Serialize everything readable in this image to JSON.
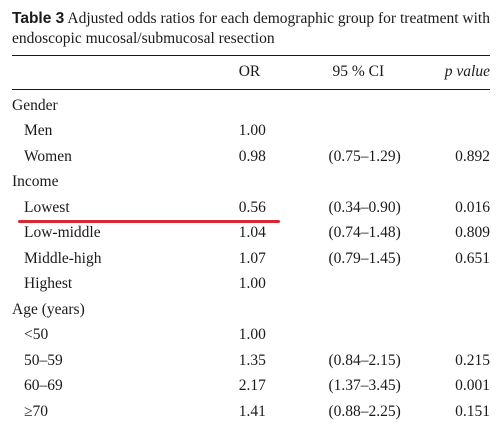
{
  "caption": {
    "label": "Table 3",
    "text": "Adjusted odds ratios for each demographic group for treatment with endoscopic mucosal/submucosal resection"
  },
  "columns": {
    "group": "",
    "or": "OR",
    "ci": "95 % CI",
    "p": "p value"
  },
  "rows": [
    {
      "type": "section",
      "label": "Gender"
    },
    {
      "type": "row",
      "label": "Men",
      "or": "1.00",
      "ci": "",
      "p": ""
    },
    {
      "type": "row",
      "label": "Women",
      "or": "0.98",
      "ci": "(0.75–1.29)",
      "p": "0.892"
    },
    {
      "type": "section",
      "label": "Income"
    },
    {
      "type": "row",
      "label": "Lowest",
      "or": "0.56",
      "ci": "(0.34–0.90)",
      "p": "0.016",
      "highlighted": true
    },
    {
      "type": "row",
      "label": "Low-middle",
      "or": "1.04",
      "ci": "(0.74–1.48)",
      "p": "0.809"
    },
    {
      "type": "row",
      "label": "Middle-high",
      "or": "1.07",
      "ci": "(0.79–1.45)",
      "p": "0.651"
    },
    {
      "type": "row",
      "label": "Highest",
      "or": "1.00",
      "ci": "",
      "p": ""
    },
    {
      "type": "section",
      "label": "Age (years)"
    },
    {
      "type": "row",
      "label": "<50",
      "or": "1.00",
      "ci": "",
      "p": ""
    },
    {
      "type": "row",
      "label": "50–59",
      "or": "1.35",
      "ci": "(0.84–2.15)",
      "p": "0.215"
    },
    {
      "type": "row",
      "label": "60–69",
      "or": "2.17",
      "ci": "(1.37–3.45)",
      "p": "0.001"
    },
    {
      "type": "row",
      "label": "≥70",
      "or": "1.41",
      "ci": "(0.88–2.25)",
      "p": "0.151"
    }
  ],
  "annotation": {
    "color": "#d7282f"
  }
}
